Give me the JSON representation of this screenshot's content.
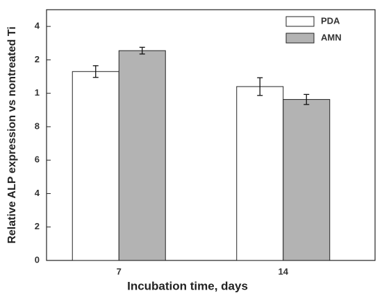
{
  "chart_data": {
    "type": "bar",
    "x_label": "Incubation time, days",
    "y_label": "Relative ALP expression vs nontreated Ti",
    "categories": [
      "7",
      "14"
    ],
    "series": [
      {
        "name": "PDA",
        "color": "#ffffff",
        "values": [
          1.13,
          1.04
        ],
        "errors": [
          0.035,
          0.053
        ]
      },
      {
        "name": "AMN",
        "color": "#b3b3b3",
        "values": [
          1.255,
          0.963
        ],
        "errors": [
          0.02,
          0.03
        ]
      }
    ],
    "ylim": [
      0,
      1.5
    ],
    "yticks": [
      0,
      {
        "value": 0.2,
        "label": "2"
      },
      {
        "value": 0.4,
        "label": "4"
      },
      {
        "value": 0.6,
        "label": "6"
      },
      {
        "value": 0.8,
        "label": "8"
      },
      1,
      {
        "value": 1.2,
        "label": "2"
      },
      {
        "value": 1.4,
        "label": "4"
      }
    ],
    "legend": "top-right"
  }
}
